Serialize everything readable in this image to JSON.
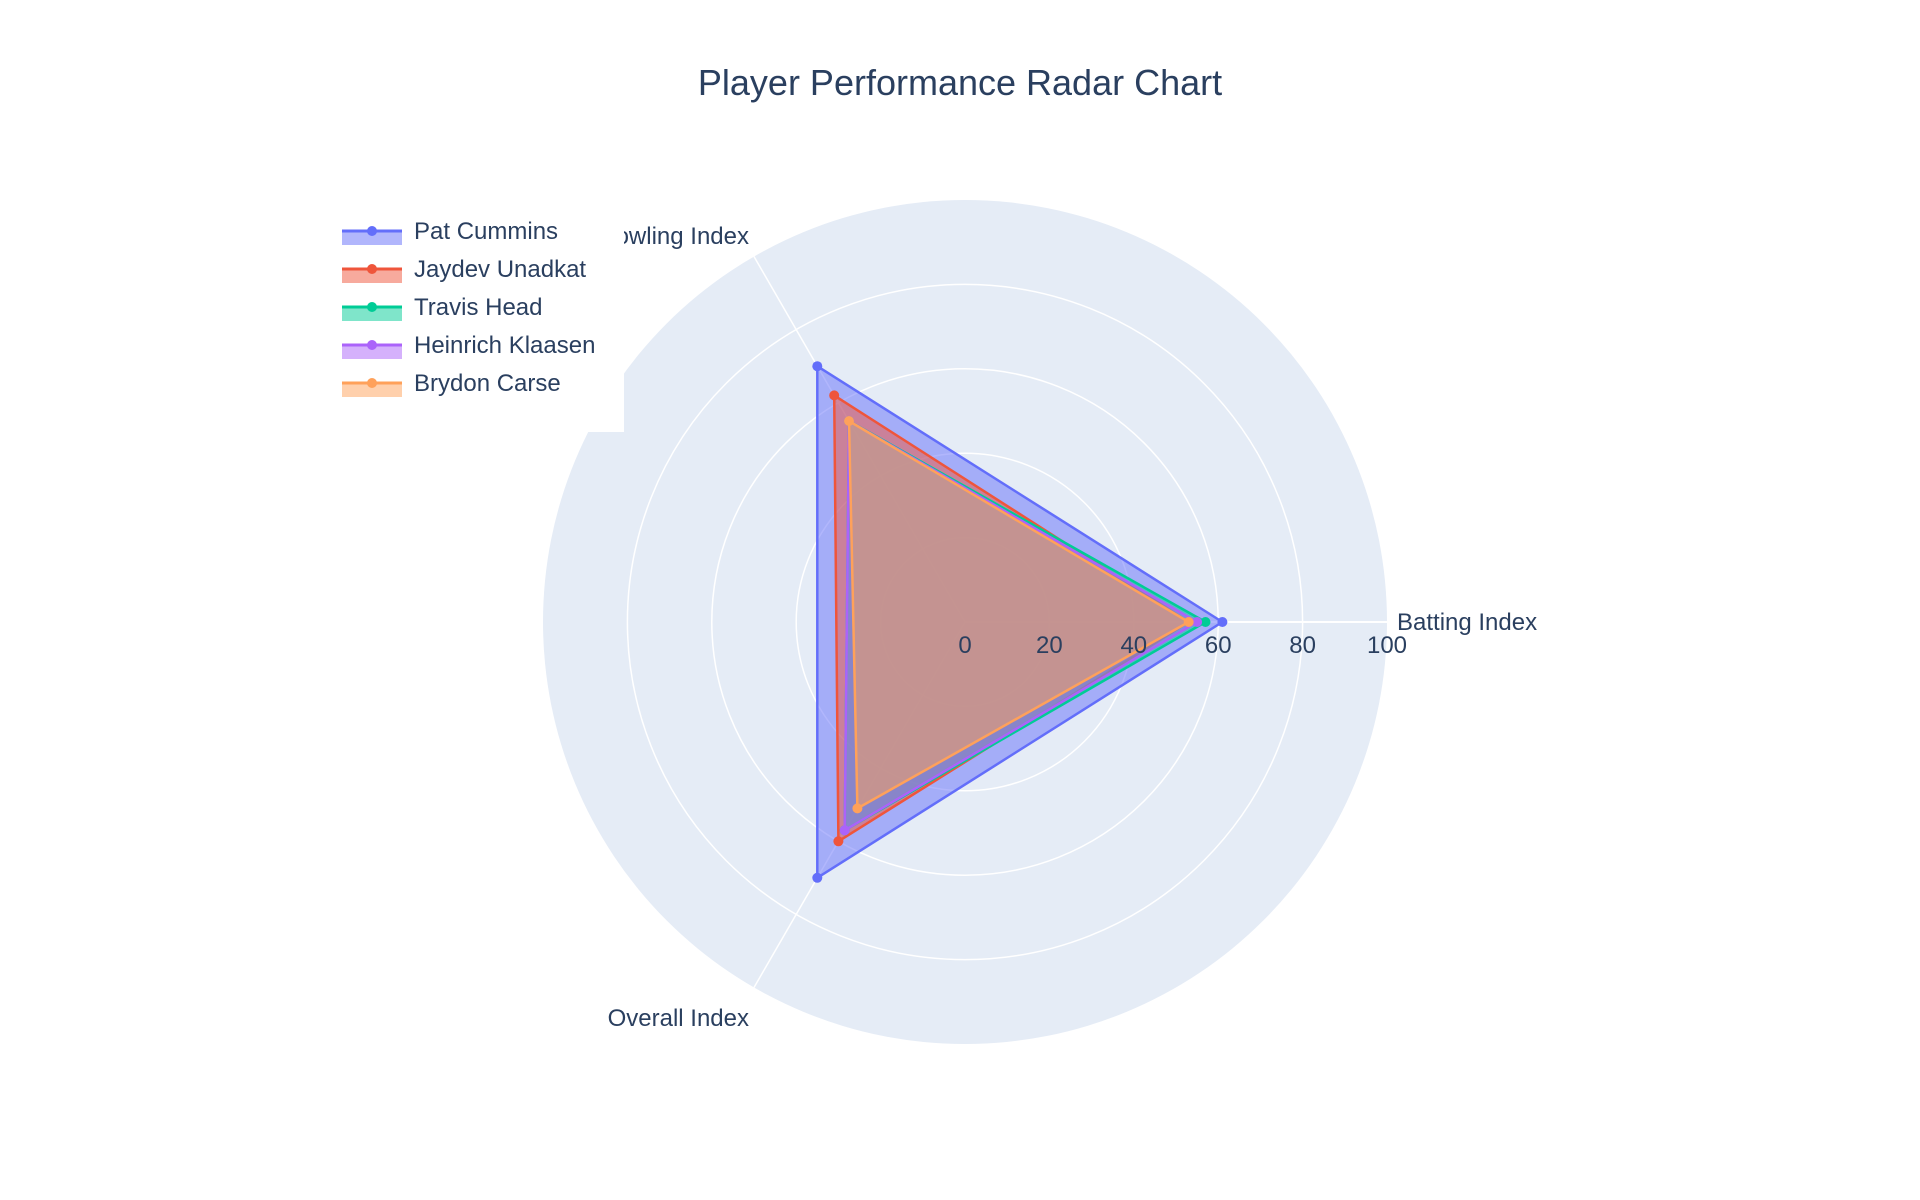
{
  "chart_data": {
    "type": "radar",
    "title": "Player Performance Radar Chart",
    "axes": [
      "Batting Index",
      "Bowling Index",
      "Overall Index"
    ],
    "radial_range": [
      0,
      100
    ],
    "radial_ticks": [
      "0",
      "20",
      "40",
      "60",
      "80",
      "100"
    ],
    "series": [
      {
        "name": "Pat Cummins",
        "values": [
          61,
          70,
          70
        ],
        "color": "#636efa"
      },
      {
        "name": "Jaydev Unadkat",
        "values": [
          53,
          62,
          60
        ],
        "color": "#ef553b"
      },
      {
        "name": "Travis Head",
        "values": [
          57,
          55,
          57
        ],
        "color": "#00cc96"
      },
      {
        "name": "Heinrich Klaasen",
        "values": [
          55,
          55,
          57
        ],
        "color": "#ab63fa"
      },
      {
        "name": "Brydon Carse",
        "values": [
          53,
          55,
          51
        ],
        "color": "#ffa15a"
      }
    ],
    "legend_position": "top-left",
    "grid": true,
    "plot_bgcolor": "#e5ecf6"
  }
}
